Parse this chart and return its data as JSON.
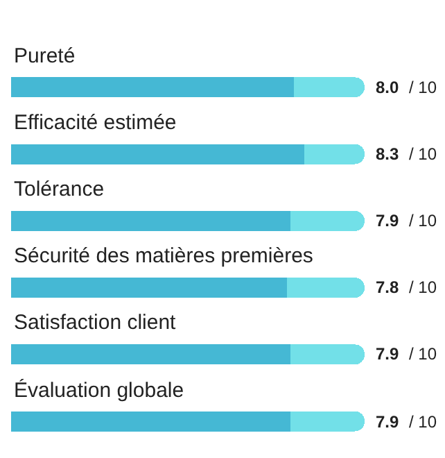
{
  "chart_data": {
    "type": "bar",
    "orientation": "horizontal",
    "stacked": true,
    "categories": [
      "Pureté",
      "Efficacité estimée",
      "Tolérance",
      "Sécurité des matières premières",
      "Satisfaction client",
      "Évaluation globale"
    ],
    "series": [
      {
        "color": "#45b8d4",
        "values": [
          8.0,
          8.3,
          7.9,
          7.8,
          7.9,
          7.9
        ],
        "value_labels": [
          "8.0",
          "8.3",
          "7.9",
          "7.8",
          "7.9",
          "7.9"
        ]
      },
      {
        "color": "#72e0e8",
        "values": [
          2.0,
          1.7,
          2.1,
          2.2,
          2.1,
          2.1
        ]
      }
    ],
    "annotations": [
      "/ 10",
      "/ 10",
      "/ 10",
      "/ 10",
      "/ 10",
      "/ 10"
    ],
    "xlim": [
      0,
      10
    ],
    "tick_labels": "y"
  }
}
